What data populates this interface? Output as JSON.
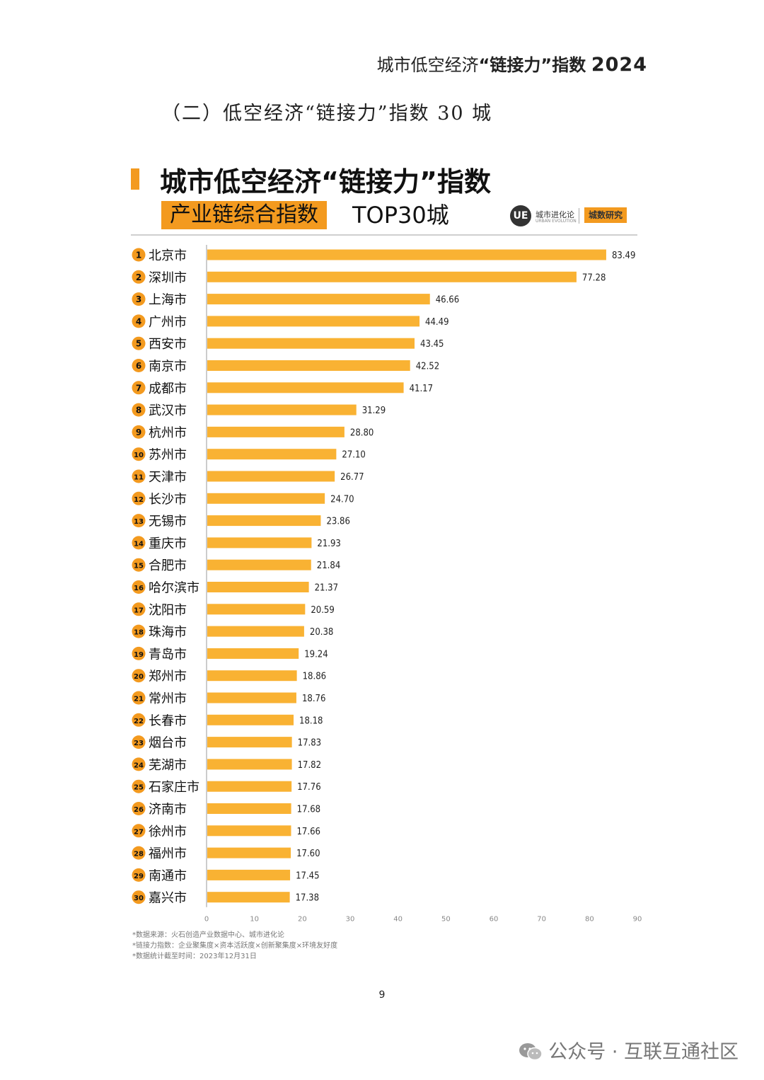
{
  "header": {
    "running_title_pre": "城市低空经济",
    "running_title_bold": "“链接力”指数",
    "running_title_year": "2024"
  },
  "section": {
    "title": "（二）低空经济“链接力”指数 30 城"
  },
  "chart_header": {
    "title": "城市低空经济“链接力”指数",
    "subtitle_highlight": "产业链综合指数",
    "subtitle_tail": "TOP30城",
    "logo_ue": "UE",
    "logo_ue_name": "城市进化论",
    "logo_ue_sub": "URBAN EVOLUTION",
    "logo_cs": "城数研究"
  },
  "colors": {
    "bar": "#f9b233",
    "accent": "#f39a1f",
    "rank_circle": "#f39a1f"
  },
  "chart_data": {
    "type": "bar",
    "orientation": "horizontal",
    "title": "城市低空经济“链接力”指数",
    "subtitle": "产业链综合指数 TOP30城",
    "ranks": [
      "1",
      "2",
      "3",
      "4",
      "5",
      "6",
      "7",
      "8",
      "9",
      "10",
      "11",
      "12",
      "13",
      "14",
      "15",
      "16",
      "17",
      "18",
      "19",
      "20",
      "21",
      "22",
      "23",
      "24",
      "25",
      "26",
      "27",
      "28",
      "29",
      "30"
    ],
    "categories": [
      "北京市",
      "深圳市",
      "上海市",
      "广州市",
      "西安市",
      "南京市",
      "成都市",
      "武汉市",
      "杭州市",
      "苏州市",
      "天津市",
      "长沙市",
      "无锡市",
      "重庆市",
      "合肥市",
      "哈尔滨市",
      "沈阳市",
      "珠海市",
      "青岛市",
      "郑州市",
      "常州市",
      "长春市",
      "烟台市",
      "芜湖市",
      "石家庄市",
      "济南市",
      "徐州市",
      "福州市",
      "南通市",
      "嘉兴市"
    ],
    "values": [
      83.49,
      77.28,
      46.66,
      44.49,
      43.45,
      42.52,
      41.17,
      31.29,
      28.8,
      27.1,
      26.77,
      24.7,
      23.86,
      21.93,
      21.84,
      21.37,
      20.59,
      20.38,
      19.24,
      18.86,
      18.76,
      18.18,
      17.83,
      17.82,
      17.76,
      17.68,
      17.66,
      17.6,
      17.45,
      17.38
    ],
    "value_labels": [
      "83.49",
      "77.28",
      "46.66",
      "44.49",
      "43.45",
      "42.52",
      "41.17",
      "31.29",
      "28.80",
      "27.10",
      "26.77",
      "24.70",
      "23.86",
      "21.93",
      "21.84",
      "21.37",
      "20.59",
      "20.38",
      "19.24",
      "18.86",
      "18.76",
      "18.18",
      "17.83",
      "17.82",
      "17.76",
      "17.68",
      "17.66",
      "17.60",
      "17.45",
      "17.38"
    ],
    "xlim": [
      0,
      90
    ],
    "xticks": [
      0,
      10,
      20,
      30,
      40,
      50,
      60,
      70,
      80,
      90
    ],
    "grid": false,
    "legend": "none"
  },
  "notes": [
    "*数据来源：火石创造产业数据中心、城市进化论",
    "*链接力指数：企业聚集度×资本活跃度×创新聚集度×环境友好度",
    "*数据统计截至时间：2023年12月31日"
  ],
  "page_number": "9",
  "watermark": "公众号 · 互联互通社区"
}
